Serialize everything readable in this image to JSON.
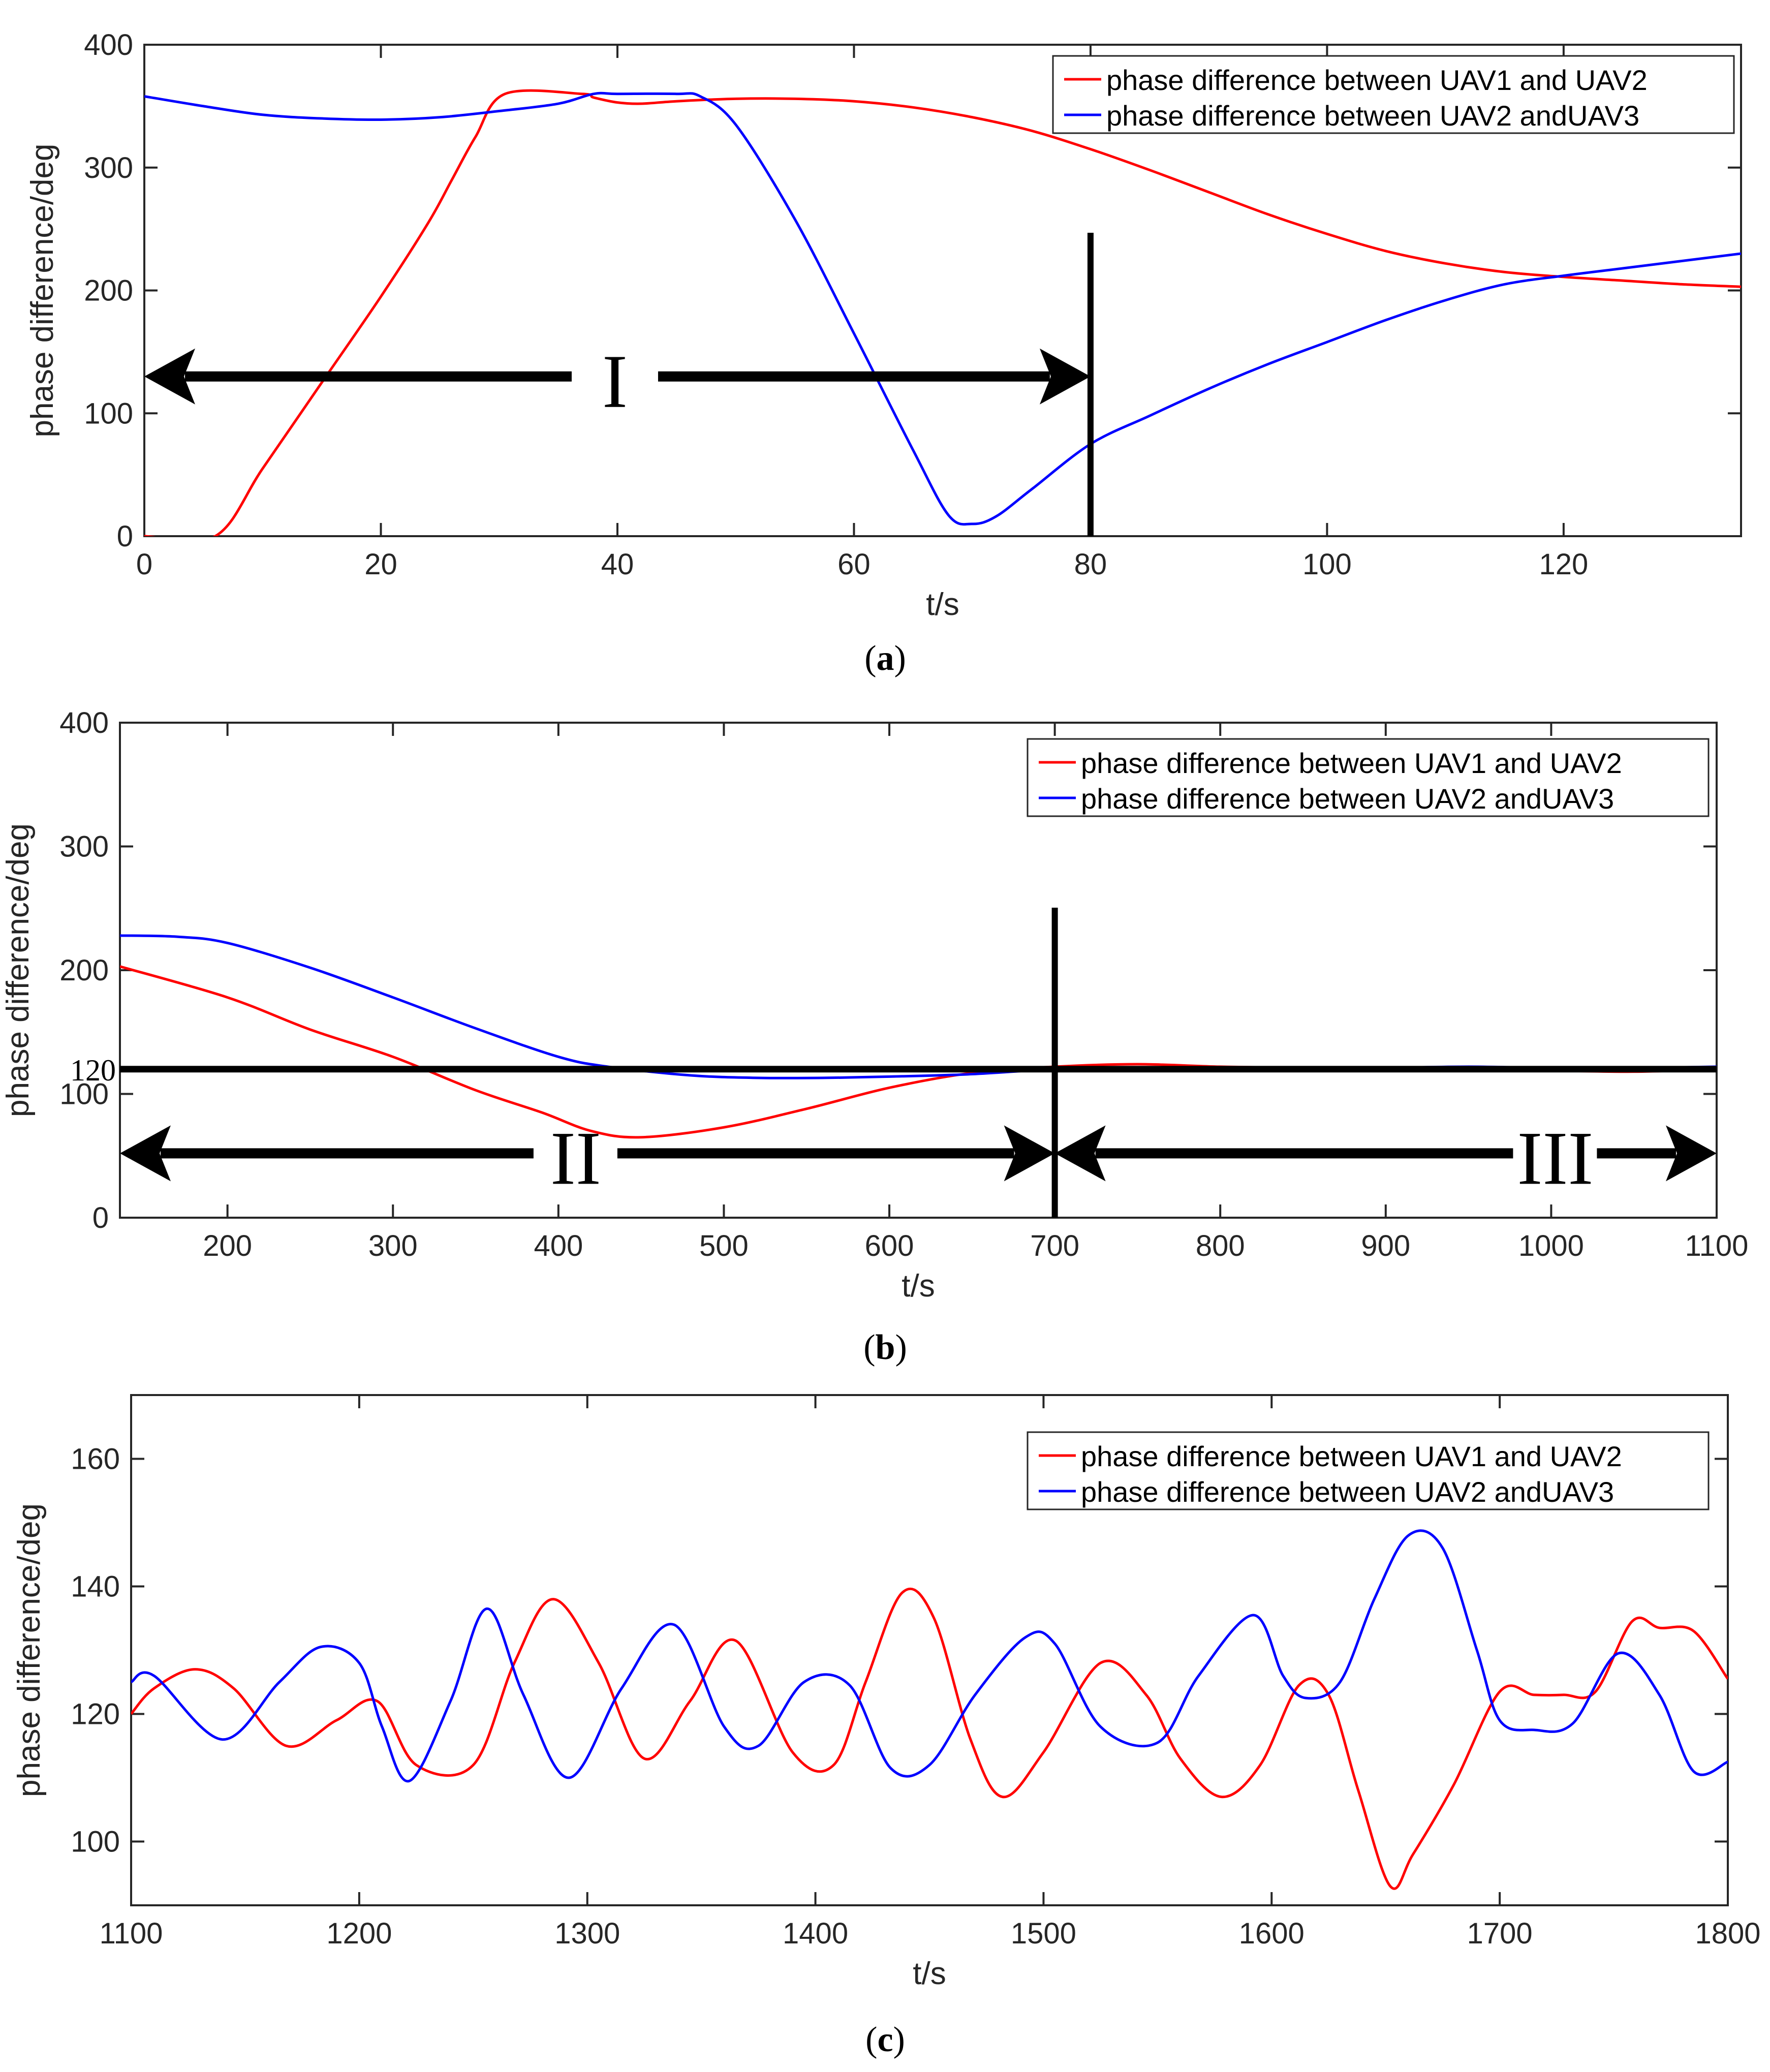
{
  "colors": {
    "series1": "#ff0000",
    "series2": "#0000ff",
    "axis": "#262626",
    "annotation": "#000000"
  },
  "chart_data": [
    {
      "type": "line",
      "panel_label": "a",
      "xlabel": "t/s",
      "ylabel": "phase difference/deg",
      "xlim": [
        0,
        135
      ],
      "ylim": [
        0,
        400
      ],
      "xticks": [
        "0",
        "20",
        "40",
        "60",
        "80",
        "100",
        "120"
      ],
      "yticks": [
        "0",
        "100",
        "200",
        "300",
        "400"
      ],
      "legend": {
        "position": "top-right",
        "entries": [
          "phase difference between UAV1 and UAV2",
          "phase difference between UAV2 andUAV3"
        ]
      },
      "annotations": {
        "vline_x": 80,
        "arrow_label": "I",
        "arrow_span": [
          0,
          80
        ],
        "arrow_y": 130
      },
      "series": [
        {
          "name": "phase difference between UAV1 and UAV2",
          "color": "red",
          "x": [
            0,
            6,
            10,
            15,
            20,
            24,
            26,
            28,
            30.5,
            37,
            38,
            40,
            42,
            45,
            50,
            55,
            60,
            65,
            70,
            75,
            80,
            85,
            90,
            95,
            100,
            105,
            110,
            115,
            120,
            125,
            130,
            135
          ],
          "y": [
            0,
            0,
            55,
            125,
            195,
            255,
            290,
            325,
            360,
            360,
            357,
            353,
            352,
            354,
            356,
            356,
            354,
            349,
            341,
            330,
            315,
            298,
            280,
            262,
            246,
            232,
            222,
            215,
            211,
            208,
            205,
            203
          ]
        },
        {
          "name": "phase difference between UAV2 andUAV3",
          "color": "blue",
          "x": [
            0,
            5,
            10,
            15,
            20,
            25,
            30,
            35,
            38,
            40,
            45,
            47,
            50,
            55,
            60,
            65,
            68,
            70,
            72,
            75,
            80,
            85,
            90,
            95,
            100,
            105,
            110,
            115,
            120,
            125,
            130,
            135
          ],
          "y": [
            358,
            350,
            343,
            340,
            339,
            341,
            346,
            352,
            360,
            360,
            360,
            358,
            335,
            258,
            165,
            70,
            17,
            10,
            16,
            38,
            75,
            98,
            120,
            140,
            158,
            176,
            192,
            205,
            212,
            218,
            224,
            230
          ]
        }
      ]
    },
    {
      "type": "line",
      "panel_label": "b",
      "xlabel": "t/s",
      "ylabel": "phase difference/deg",
      "xlim": [
        135,
        1100
      ],
      "ylim": [
        0,
        400
      ],
      "xticks": [
        "200",
        "300",
        "400",
        "500",
        "600",
        "700",
        "800",
        "900",
        "1000",
        "1100"
      ],
      "yticks": [
        "0",
        "100",
        "200",
        "300",
        "400"
      ],
      "legend": {
        "position": "top-right",
        "entries": [
          "phase difference between UAV1 and UAV2",
          "phase difference between UAV2 andUAV3"
        ]
      },
      "annotations": {
        "hline_y": 120,
        "hline_label": "120",
        "vline_x": 700,
        "arrow_labels": [
          "II",
          "III"
        ],
        "arrow_spans": [
          [
            135,
            700
          ],
          [
            700,
            1100
          ]
        ],
        "arrow_y": 52
      },
      "series": [
        {
          "name": "phase difference between UAV1 and UAV2",
          "color": "red",
          "x": [
            135,
            200,
            250,
            300,
            350,
            390,
            420,
            450,
            500,
            550,
            600,
            650,
            700,
            750,
            800,
            850,
            900,
            950,
            1000,
            1050,
            1100
          ],
          "y": [
            203,
            178,
            152,
            130,
            103,
            85,
            70,
            65,
            73,
            88,
            105,
            117,
            122,
            124,
            122,
            121,
            120,
            121,
            119,
            118,
            120
          ]
        },
        {
          "name": "phase difference between UAV2 andUAV3",
          "color": "blue",
          "x": [
            135,
            170,
            200,
            250,
            300,
            350,
            400,
            430,
            480,
            520,
            560,
            600,
            650,
            700,
            750,
            800,
            850,
            900,
            950,
            1000,
            1050,
            1100
          ],
          "y": [
            228,
            227,
            222,
            202,
            178,
            153,
            130,
            122,
            115,
            113,
            113,
            114,
            116,
            120,
            121,
            121,
            120,
            121,
            122,
            121,
            121,
            122
          ]
        }
      ]
    },
    {
      "type": "line",
      "panel_label": "c",
      "xlabel": "t/s",
      "ylabel": "phase difference/deg",
      "xlim": [
        1100,
        1800
      ],
      "ylim": [
        90,
        170
      ],
      "xticks": [
        "1100",
        "1200",
        "1300",
        "1400",
        "1500",
        "1600",
        "1700",
        "1800"
      ],
      "yticks": [
        "100",
        "120",
        "140",
        "160"
      ],
      "legend": {
        "position": "top-right",
        "entries": [
          "phase difference between UAV1 and UAV2",
          "phase difference between UAV2 andUAV3"
        ]
      },
      "series": [
        {
          "name": "phase difference between UAV1 and UAV2",
          "color": "red",
          "x": [
            1100,
            1110,
            1128,
            1145,
            1168,
            1190,
            1208,
            1225,
            1250,
            1268,
            1285,
            1305,
            1325,
            1345,
            1365,
            1390,
            1408,
            1422,
            1438,
            1452,
            1468,
            1482,
            1500,
            1525,
            1545,
            1560,
            1578,
            1595,
            1612,
            1625,
            1638,
            1652,
            1662,
            1680,
            1700,
            1715,
            1728,
            1742,
            1758,
            1770,
            1785,
            1800
          ],
          "y": [
            120,
            124,
            127,
            124,
            115,
            119,
            122,
            112,
            112,
            128,
            138,
            128,
            113,
            122,
            131.5,
            114,
            112,
            125,
            139,
            135,
            116,
            107,
            114,
            128,
            123,
            113,
            107,
            112,
            124.5,
            123,
            108,
            93,
            98,
            109,
            123.5,
            123,
            123,
            123.5,
            134.5,
            133.5,
            133,
            125.5
          ]
        },
        {
          "name": "phase difference between UAV2 andUAV3",
          "color": "blue",
          "x": [
            1100,
            1110,
            1140,
            1165,
            1183,
            1200,
            1210,
            1222,
            1240,
            1256,
            1272,
            1292,
            1315,
            1338,
            1360,
            1375,
            1395,
            1415,
            1433,
            1450,
            1470,
            1492,
            1505,
            1525,
            1550,
            1568,
            1592,
            1605,
            1615,
            1630,
            1645,
            1660,
            1675,
            1690,
            1700,
            1715,
            1732,
            1752,
            1770,
            1785,
            1800
          ],
          "y": [
            125,
            126,
            116,
            125,
            130.5,
            128,
            118,
            109.5,
            122,
            136.5,
            123,
            110,
            124,
            134,
            118,
            115,
            125,
            124.5,
            111.5,
            112,
            123,
            132,
            131,
            118,
            115.5,
            126,
            135.5,
            126,
            122.5,
            125,
            138,
            148,
            146,
            130,
            119,
            117.5,
            118.5,
            129.5,
            123,
            111,
            112.5
          ]
        }
      ]
    }
  ]
}
